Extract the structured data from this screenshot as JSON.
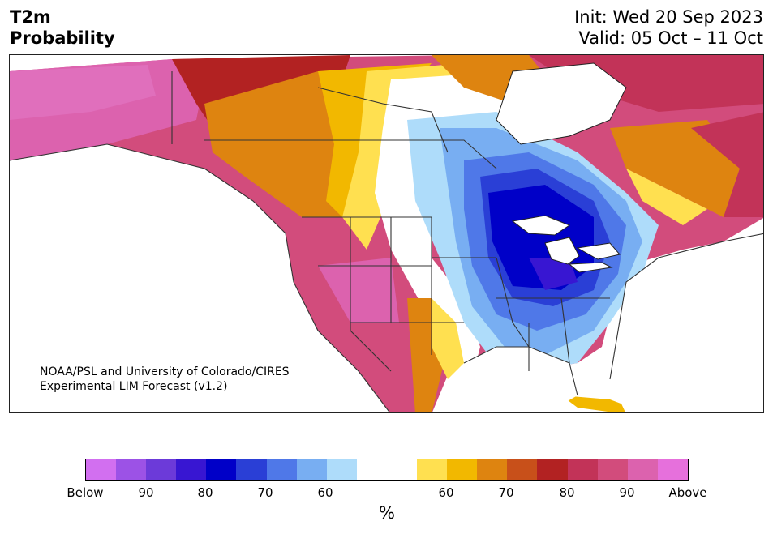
{
  "header": {
    "variable": "T2m",
    "subtitle": "Probability",
    "init": "Init: Wed 20 Sep 2023",
    "valid": "Valid: 05 Oct – 11 Oct"
  },
  "credit": {
    "line1": "NOAA/PSL and University of Colorado/CIRES",
    "line2": "Experimental LIM Forecast (v1.2)"
  },
  "colorbar": {
    "unit_label": "%",
    "colors": [
      "#d26ff0",
      "#9c52e6",
      "#6c3ad9",
      "#3816d2",
      "#0000c8",
      "#2a3fd6",
      "#4f78e8",
      "#78aef2",
      "#aedcfa",
      "#ffffff",
      "#ffffff",
      "#ffe050",
      "#f2b800",
      "#de8410",
      "#c8501a",
      "#b22222",
      "#c23358",
      "#d24c7c",
      "#dc62ae",
      "#e670dc"
    ],
    "ticks": [
      "Below",
      "90",
      "80",
      "70",
      "60",
      "60",
      "70",
      "80",
      "90",
      "Above"
    ]
  },
  "map": {
    "colors": {
      "deep_blue": "#0000c8",
      "violet": "#3816d2",
      "blue": "#2a3fd6",
      "mid_blue": "#4f78e8",
      "light_blue": "#78aef2",
      "pale_blue": "#aedcfa",
      "yellow": "#ffe050",
      "gold": "#f2b800",
      "orange": "#de8410",
      "burnt": "#c8501a",
      "red": "#b22222",
      "crimson": "#c23358",
      "rose": "#d24c7c",
      "pink": "#dc62ae",
      "magenta": "#e670dc"
    }
  }
}
